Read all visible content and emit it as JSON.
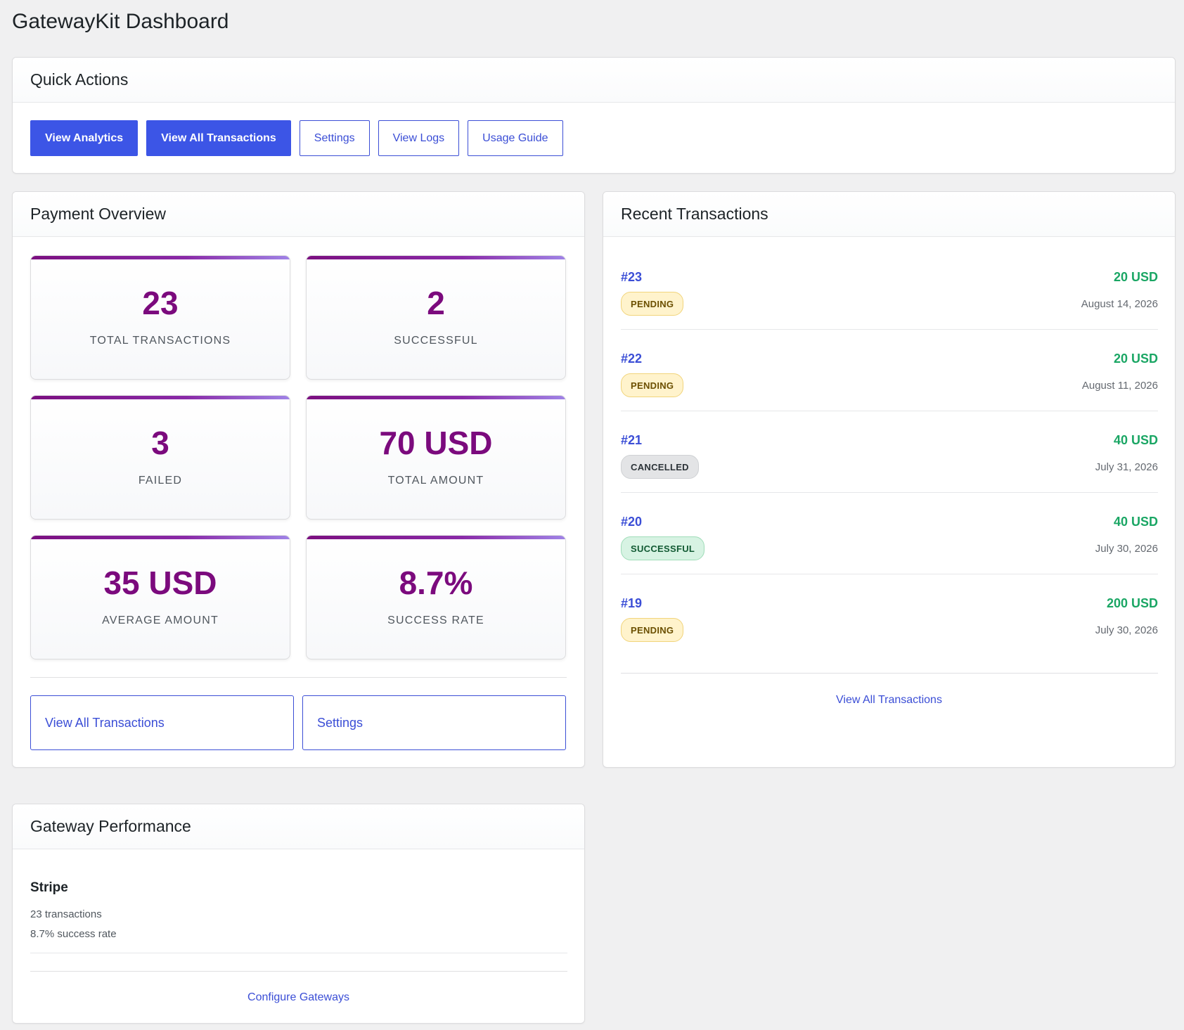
{
  "page": {
    "title": "GatewayKit Dashboard"
  },
  "quick_actions": {
    "title": "Quick Actions",
    "buttons": [
      {
        "label": "View Analytics",
        "style": "primary"
      },
      {
        "label": "View All Transactions",
        "style": "primary"
      },
      {
        "label": "Settings",
        "style": "outline"
      },
      {
        "label": "View Logs",
        "style": "outline"
      },
      {
        "label": "Usage Guide",
        "style": "outline"
      }
    ]
  },
  "payment_overview": {
    "title": "Payment Overview",
    "stats": [
      {
        "value": "23",
        "label": "TOTAL TRANSACTIONS"
      },
      {
        "value": "2",
        "label": "SUCCESSFUL"
      },
      {
        "value": "3",
        "label": "FAILED"
      },
      {
        "value": "70 USD",
        "label": "TOTAL AMOUNT"
      },
      {
        "value": "35 USD",
        "label": "AVERAGE AMOUNT"
      },
      {
        "value": "8.7%",
        "label": "SUCCESS RATE"
      }
    ],
    "actions": [
      {
        "label": "View All Transactions"
      },
      {
        "label": "Settings"
      }
    ]
  },
  "recent_transactions": {
    "title": "Recent Transactions",
    "items": [
      {
        "id": "#23",
        "amount": "20 USD",
        "status": "PENDING",
        "status_key": "pending",
        "date": "August 14, 2026"
      },
      {
        "id": "#22",
        "amount": "20 USD",
        "status": "PENDING",
        "status_key": "pending",
        "date": "August 11, 2026"
      },
      {
        "id": "#21",
        "amount": "40 USD",
        "status": "CANCELLED",
        "status_key": "cancelled",
        "date": "July 31, 2026"
      },
      {
        "id": "#20",
        "amount": "40 USD",
        "status": "SUCCESSFUL",
        "status_key": "successful",
        "date": "July 30, 2026"
      },
      {
        "id": "#19",
        "amount": "200 USD",
        "status": "PENDING",
        "status_key": "pending",
        "date": "July 30, 2026"
      }
    ],
    "view_all_label": "View All Transactions"
  },
  "gateway_performance": {
    "title": "Gateway Performance",
    "gateways": [
      {
        "name": "Stripe",
        "transactions": "23 transactions",
        "success_rate": "8.7% success rate"
      }
    ],
    "configure_label": "Configure Gateways"
  },
  "colors": {
    "accent": "#3c55e6",
    "stat_value": "#7b0a7d",
    "amount": "#1aa664",
    "background": "#f0f0f1"
  }
}
